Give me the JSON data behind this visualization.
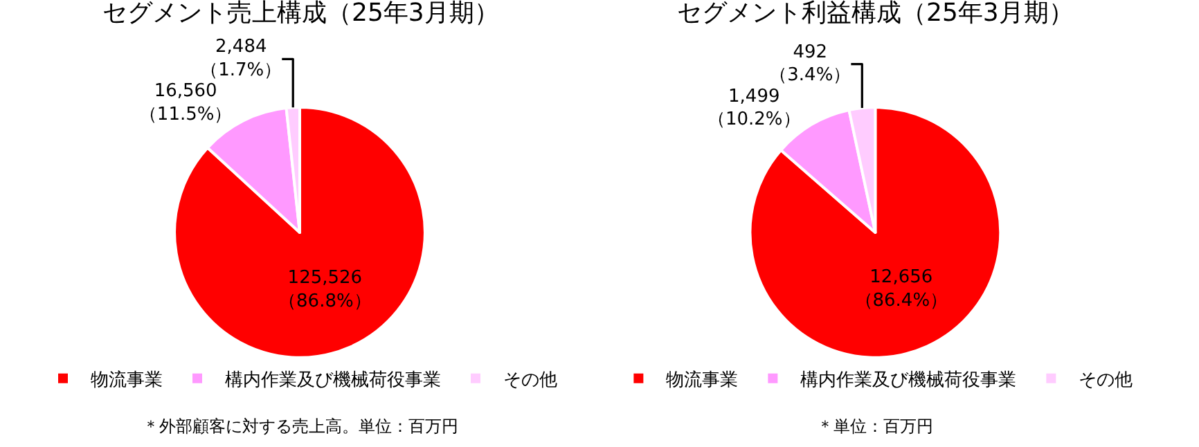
{
  "chart_data": [
    {
      "type": "pie",
      "title": "セグメント売上構成（25年3月期）",
      "categories": [
        "物流事業",
        "構内作業及び機械荷役事業",
        "その他"
      ],
      "values": [
        125526,
        16560,
        2484
      ],
      "colors": [
        "#ff0000",
        "#ff99ff",
        "#ffccff"
      ],
      "value_labels": [
        "125,526\n（86.8%）",
        "16,560\n（11.5%）",
        "2,484\n（1.7%）"
      ],
      "legend": "bottom",
      "annotations": [
        "＊外部顧客に対する売上高。単位：百万円"
      ]
    },
    {
      "type": "pie",
      "title": "セグメント利益構成（25年3月期）",
      "categories": [
        "物流事業",
        "構内作業及び機械荷役事業",
        "その他"
      ],
      "values": [
        12656,
        1499,
        492
      ],
      "colors": [
        "#ff0000",
        "#ff99ff",
        "#ffccff"
      ],
      "value_labels": [
        "12,656\n（86.4%）",
        "1,499\n（10.2%）",
        "492\n（3.4%）"
      ],
      "legend": "bottom",
      "annotations": [
        "＊単位：百万円"
      ]
    }
  ]
}
